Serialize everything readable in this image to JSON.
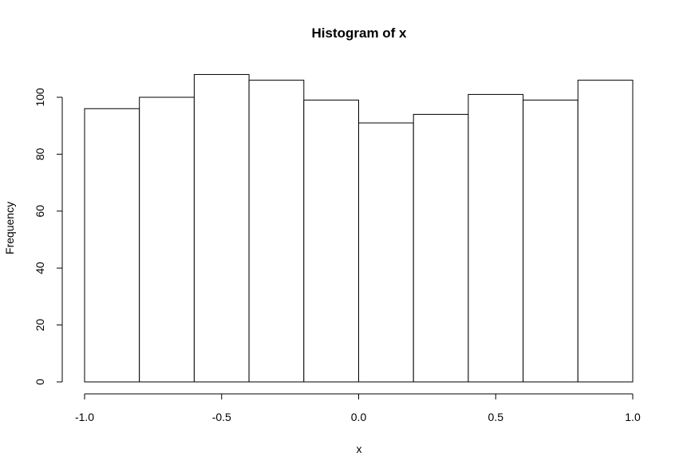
{
  "chart_data": {
    "type": "bar",
    "title": "Histogram of x",
    "xlabel": "x",
    "ylabel": "Frequency",
    "bins": [
      {
        "x0": -1.0,
        "x1": -0.8,
        "count": 96
      },
      {
        "x0": -0.8,
        "x1": -0.6,
        "count": 100
      },
      {
        "x0": -0.6,
        "x1": -0.4,
        "count": 108
      },
      {
        "x0": -0.4,
        "x1": -0.2,
        "count": 106
      },
      {
        "x0": -0.2,
        "x1": 0.0,
        "count": 99
      },
      {
        "x0": 0.0,
        "x1": 0.2,
        "count": 91
      },
      {
        "x0": 0.2,
        "x1": 0.4,
        "count": 94
      },
      {
        "x0": 0.4,
        "x1": 0.6,
        "count": 101
      },
      {
        "x0": 0.6,
        "x1": 0.8,
        "count": 99
      },
      {
        "x0": 0.8,
        "x1": 1.0,
        "count": 106
      }
    ],
    "xlim": [
      -1.0,
      1.0
    ],
    "ylim": [
      0,
      108
    ],
    "x_ticks": [
      "-1.0",
      "-0.5",
      "0.0",
      "0.5",
      "1.0"
    ],
    "y_ticks": [
      "0",
      "20",
      "40",
      "60",
      "80",
      "100"
    ],
    "grid": false
  }
}
